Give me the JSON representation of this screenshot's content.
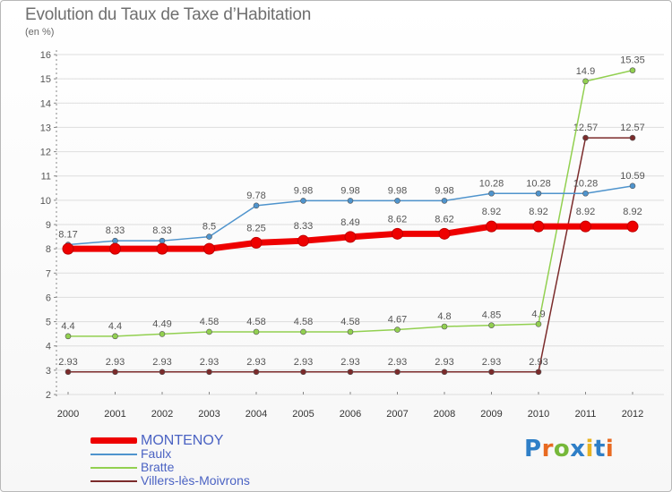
{
  "chart_data": {
    "type": "line",
    "title": "Evolution du Taux de Taxe d’Habitation",
    "subtitle": "(en %)",
    "xlabel": "",
    "ylabel": "",
    "x": [
      "2000",
      "2001",
      "2002",
      "2003",
      "2004",
      "2005",
      "2006",
      "2007",
      "2008",
      "2009",
      "2010",
      "2011",
      "2012"
    ],
    "ylim": [
      2,
      16
    ],
    "yticks": [
      2,
      3,
      4,
      5,
      6,
      7,
      8,
      9,
      10,
      11,
      12,
      13,
      14,
      15,
      16
    ],
    "grid": "horizontal",
    "series": [
      {
        "name": "MONTENOY",
        "color": "#ee0000",
        "values": [
          8.0,
          8.0,
          8.0,
          8.0,
          8.25,
          8.33,
          8.49,
          8.62,
          8.62,
          8.92,
          8.92,
          8.92,
          8.92
        ],
        "labels": [
          "",
          "",
          "",
          "",
          "8.25",
          "8.33",
          "8.49",
          "8.62",
          "8.62",
          "8.92",
          "8.92",
          "8.92",
          "8.92"
        ]
      },
      {
        "name": "Faulx",
        "color": "#4f94cd",
        "values": [
          8.17,
          8.33,
          8.33,
          8.5,
          9.78,
          9.98,
          9.98,
          9.98,
          9.98,
          10.28,
          10.28,
          10.28,
          10.59
        ],
        "labels": [
          "8.17",
          "8.33",
          "8.33",
          "8.5",
          "9.78",
          "9.98",
          "9.98",
          "9.98",
          "9.98",
          "10.28",
          "10.28",
          "10.28",
          "10.59"
        ]
      },
      {
        "name": "Bratte",
        "color": "#92d050",
        "values": [
          4.4,
          4.4,
          4.49,
          4.58,
          4.58,
          4.58,
          4.58,
          4.67,
          4.8,
          4.85,
          4.9,
          14.9,
          15.35
        ],
        "labels": [
          "4.4",
          "4.4",
          "4.49",
          "4.58",
          "4.58",
          "4.58",
          "4.58",
          "4.67",
          "4.8",
          "4.85",
          "4.9",
          "14.9",
          "15.35"
        ]
      },
      {
        "name": "Villers-lès-Moivrons",
        "color": "#7b2b2b",
        "values": [
          2.93,
          2.93,
          2.93,
          2.93,
          2.93,
          2.93,
          2.93,
          2.93,
          2.93,
          2.93,
          2.93,
          12.57,
          12.57
        ],
        "labels": [
          "2.93",
          "2.93",
          "2.93",
          "2.93",
          "2.93",
          "2.93",
          "2.93",
          "2.93",
          "2.93",
          "2.93",
          "2.93",
          "12.57",
          "12.57"
        ]
      }
    ]
  },
  "logo_text": "Proxiti"
}
